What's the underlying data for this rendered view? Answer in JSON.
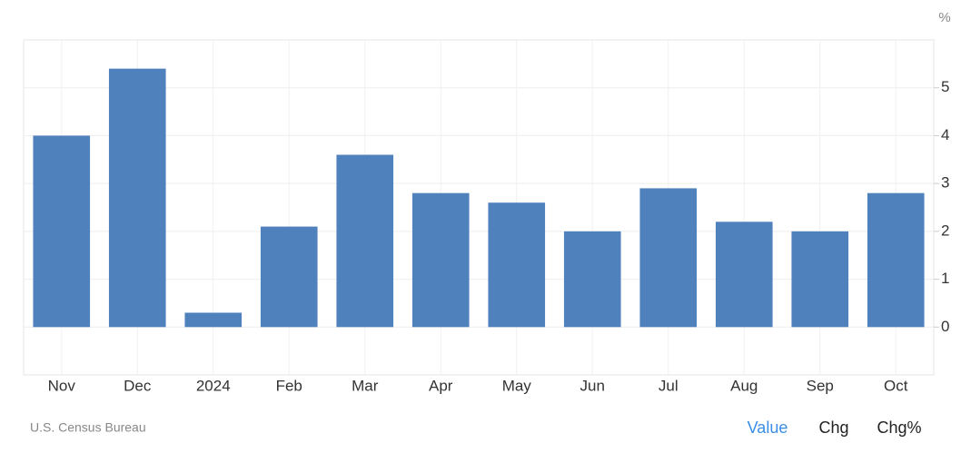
{
  "chart_data": {
    "type": "bar",
    "categories": [
      "Nov",
      "Dec",
      "2024",
      "Feb",
      "Mar",
      "Apr",
      "May",
      "Jun",
      "Jul",
      "Aug",
      "Sep",
      "Oct"
    ],
    "values": [
      4.0,
      5.4,
      0.3,
      2.1,
      3.6,
      2.8,
      2.6,
      2.0,
      2.9,
      2.2,
      2.0,
      2.8
    ],
    "color": "#4f81bd",
    "y_unit": "%",
    "ylim": [
      -1,
      6
    ],
    "yticks": [
      0,
      1,
      2,
      3,
      4,
      5
    ],
    "grid": true,
    "source": "U.S. Census Bureau"
  },
  "controls": {
    "buttons": [
      "Value",
      "Chg",
      "Chg%"
    ],
    "selected": 0
  }
}
